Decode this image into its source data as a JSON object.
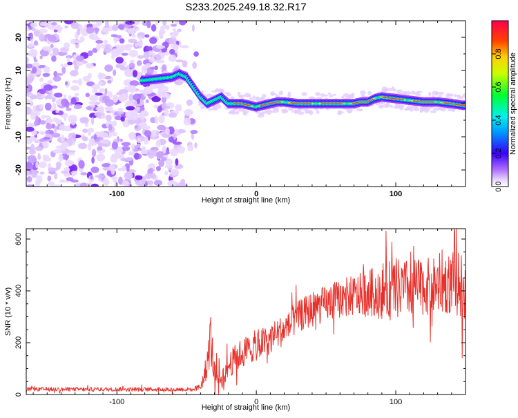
{
  "title": "S233.2025.249.18.32.R17",
  "chart_data": [
    {
      "type": "heatmap",
      "panel": "top",
      "xlabel": "Height of straight line (km)",
      "ylabel": "Frequency (Hz)",
      "xlim": [
        -165,
        150
      ],
      "ylim": [
        -25,
        25
      ],
      "xticks": [
        "-100",
        "0",
        "100"
      ],
      "yticks": [
        "20",
        "10",
        "0",
        "-10",
        "-20"
      ],
      "colorbar": {
        "label": "Normalized spectral amplitude",
        "range": [
          0.0,
          1.0
        ],
        "ticks": [
          "0.0",
          "0.2",
          "0.4",
          "0.6",
          "0.8"
        ]
      },
      "ridge": {
        "x": [
          -80,
          -70,
          -60,
          -55,
          -50,
          -45,
          -40,
          -35,
          -30,
          -25,
          -20,
          -15,
          -10,
          -5,
          0,
          5,
          10,
          15,
          20,
          30,
          40,
          50,
          60,
          70,
          75,
          80,
          85,
          90,
          100,
          110,
          120,
          130,
          140,
          148
        ],
        "freq": [
          7,
          7.5,
          8,
          9,
          8,
          5,
          2,
          0,
          1,
          2,
          0,
          0,
          0,
          -0.5,
          -1,
          -0.5,
          0,
          0.5,
          0.5,
          0,
          0,
          0,
          0,
          0,
          0.5,
          0.5,
          1.5,
          2,
          1.5,
          1,
          0.5,
          0.5,
          0,
          -0.5
        ]
      },
      "noise_region_x": [
        -165,
        -55
      ]
    },
    {
      "type": "line",
      "panel": "bottom",
      "xlabel": "Height of straight line (km)",
      "ylabel": "SNR (10 * v/v)",
      "xlim": [
        -165,
        150
      ],
      "ylim": [
        0,
        640
      ],
      "xticks": [
        "-100",
        "0",
        "100"
      ],
      "yticks": [
        "0",
        "200",
        "400",
        "600"
      ],
      "series": [
        {
          "name": "SNR",
          "color": "#e8302a",
          "envelope_x": [
            -165,
            -45,
            -40,
            -38,
            -35,
            -33,
            -30,
            -25,
            -20,
            -15,
            -10,
            -5,
            0,
            5,
            10,
            15,
            20,
            25,
            30,
            40,
            50,
            60,
            70,
            80,
            90,
            100,
            110,
            120,
            130,
            140,
            150
          ],
          "envelope_mean": [
            20,
            20,
            30,
            60,
            120,
            230,
            80,
            60,
            110,
            140,
            160,
            175,
            190,
            200,
            215,
            235,
            250,
            270,
            300,
            330,
            350,
            370,
            380,
            390,
            400,
            405,
            410,
            415,
            420,
            430,
            420
          ],
          "envelope_spread": [
            8,
            8,
            15,
            30,
            60,
            110,
            45,
            40,
            50,
            55,
            60,
            60,
            60,
            60,
            60,
            60,
            60,
            60,
            60,
            70,
            70,
            75,
            80,
            90,
            110,
            120,
            110,
            110,
            110,
            120,
            130
          ]
        }
      ]
    }
  ]
}
